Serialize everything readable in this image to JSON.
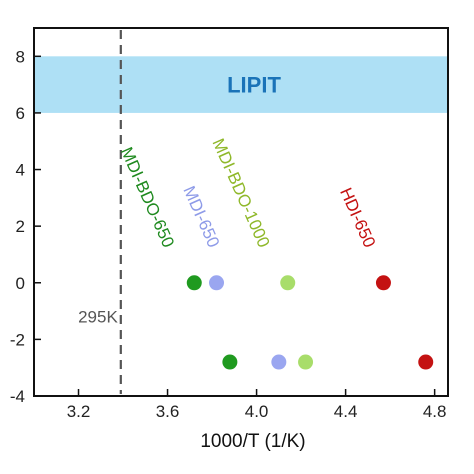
{
  "chart_data": {
    "type": "scatter",
    "xlabel": "1000/T (1/K)",
    "ylabel": "",
    "xlim": [
      3.0,
      4.86
    ],
    "ylim": [
      -4,
      9
    ],
    "x_ticks": [
      3.2,
      3.6,
      4.0,
      4.4,
      4.8
    ],
    "x_tick_labels": [
      "3.2",
      "3.6",
      "4.0",
      "4.4",
      "4.8"
    ],
    "y_ticks": [
      -4,
      -2,
      0,
      2,
      4,
      6,
      8
    ],
    "y_tick_labels": [
      "-4",
      "-2",
      "0",
      "2",
      "4",
      "6",
      "8"
    ],
    "band": {
      "label": "LIPIT",
      "y_from": 6,
      "y_to": 8,
      "color": "#aee0f5",
      "label_color": "#1a73b8"
    },
    "reference_line": {
      "x": 3.39,
      "label": "295K",
      "color": "#555555"
    },
    "series": [
      {
        "name": "MDI-BDO-650",
        "color": "#1f9a1f",
        "points": [
          {
            "x": 3.72,
            "y": 0
          },
          {
            "x": 3.88,
            "y": -2.8
          }
        ]
      },
      {
        "name": "MDI-650",
        "color": "#9aa6f0",
        "points": [
          {
            "x": 3.82,
            "y": 0
          },
          {
            "x": 4.1,
            "y": -2.8
          }
        ]
      },
      {
        "name": "MDI-BDO-1000",
        "color": "#a8dd6a",
        "points": [
          {
            "x": 4.14,
            "y": 0
          },
          {
            "x": 4.22,
            "y": -2.8
          }
        ]
      },
      {
        "name": "HDI-650",
        "color": "#c41212",
        "points": [
          {
            "x": 4.57,
            "y": 0
          },
          {
            "x": 4.76,
            "y": -2.8
          }
        ]
      }
    ],
    "series_label_colors": {
      "MDI-BDO-650": "#1f8a1f",
      "MDI-650": "#8e9be8",
      "MDI-BDO-1000": "#8fb82a",
      "HDI-650": "#c41212"
    }
  }
}
